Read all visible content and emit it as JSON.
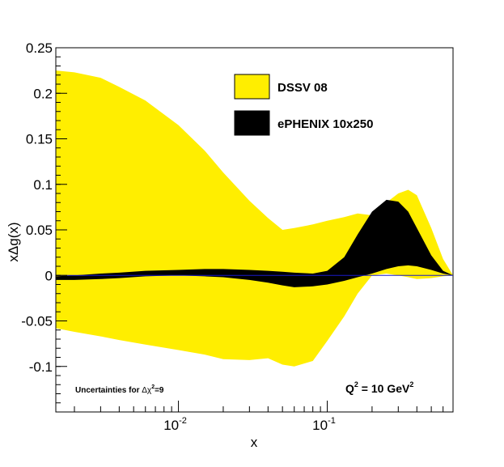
{
  "chart_data": {
    "type": "area",
    "xlabel": "x",
    "ylabel": "xΔg(x)",
    "x_scale": "log",
    "xlim": [
      0.0015,
      0.7
    ],
    "ylim": [
      -0.15,
      0.25
    ],
    "y_ticks": [
      0.25,
      0.2,
      0.15,
      0.1,
      0.05,
      0,
      -0.05,
      -0.1
    ],
    "y_tick_labels": [
      "0.25",
      "0.2",
      "0.15",
      "0.1",
      "0.05",
      "0",
      "-0.05",
      "-0.1"
    ],
    "x_tick_labels": [
      {
        "value": 0.01,
        "base": "10",
        "exponent": "-2"
      },
      {
        "value": 0.1,
        "base": "10",
        "exponent": "-1"
      }
    ],
    "grid": false,
    "legend_position": "top-center",
    "series": [
      {
        "name": "DSSV 08",
        "color": "#ffee00",
        "x": [
          0.0015,
          0.002,
          0.003,
          0.004,
          0.006,
          0.01,
          0.015,
          0.02,
          0.03,
          0.04,
          0.05,
          0.06,
          0.08,
          0.1,
          0.13,
          0.16,
          0.2,
          0.25,
          0.3,
          0.35,
          0.4,
          0.5,
          0.6,
          0.7
        ],
        "upper": [
          0.225,
          0.223,
          0.217,
          0.207,
          0.192,
          0.165,
          0.137,
          0.113,
          0.082,
          0.063,
          0.05,
          0.052,
          0.056,
          0.06,
          0.064,
          0.068,
          0.066,
          0.08,
          0.09,
          0.094,
          0.088,
          0.052,
          0.018,
          0.0
        ],
        "lower": [
          -0.058,
          -0.062,
          -0.067,
          -0.071,
          -0.076,
          -0.082,
          -0.087,
          -0.092,
          -0.093,
          -0.091,
          -0.098,
          -0.1,
          -0.094,
          -0.072,
          -0.045,
          -0.02,
          0.0,
          0.002,
          0.0,
          -0.002,
          -0.004,
          -0.003,
          -0.001,
          0.0
        ]
      },
      {
        "name": "ePHENIX 10x250",
        "color": "#000000",
        "x": [
          0.0015,
          0.002,
          0.003,
          0.004,
          0.006,
          0.01,
          0.015,
          0.02,
          0.03,
          0.04,
          0.05,
          0.06,
          0.08,
          0.1,
          0.13,
          0.16,
          0.2,
          0.25,
          0.3,
          0.35,
          0.4,
          0.5,
          0.6,
          0.7
        ],
        "upper": [
          -0.001,
          0.0,
          0.002,
          0.003,
          0.005,
          0.006,
          0.007,
          0.007,
          0.006,
          0.005,
          0.004,
          0.003,
          0.002,
          0.005,
          0.02,
          0.045,
          0.07,
          0.083,
          0.081,
          0.07,
          0.052,
          0.022,
          0.005,
          0.0
        ],
        "lower": [
          -0.005,
          -0.005,
          -0.004,
          -0.003,
          -0.001,
          0.0,
          -0.001,
          -0.002,
          -0.005,
          -0.008,
          -0.011,
          -0.013,
          -0.012,
          -0.01,
          -0.006,
          -0.002,
          0.002,
          0.007,
          0.01,
          0.011,
          0.01,
          0.006,
          0.002,
          0.0
        ]
      }
    ],
    "annotations": {
      "uncertainty_prefix": "Uncertainties for ",
      "uncertainty_symbol": "Δχ",
      "uncertainty_exp": "2",
      "uncertainty_suffix": "=9",
      "q2_prefix": "Q",
      "q2_exp": "2",
      "q2_mid": " = 10 GeV",
      "q2_exp2": "2"
    }
  }
}
